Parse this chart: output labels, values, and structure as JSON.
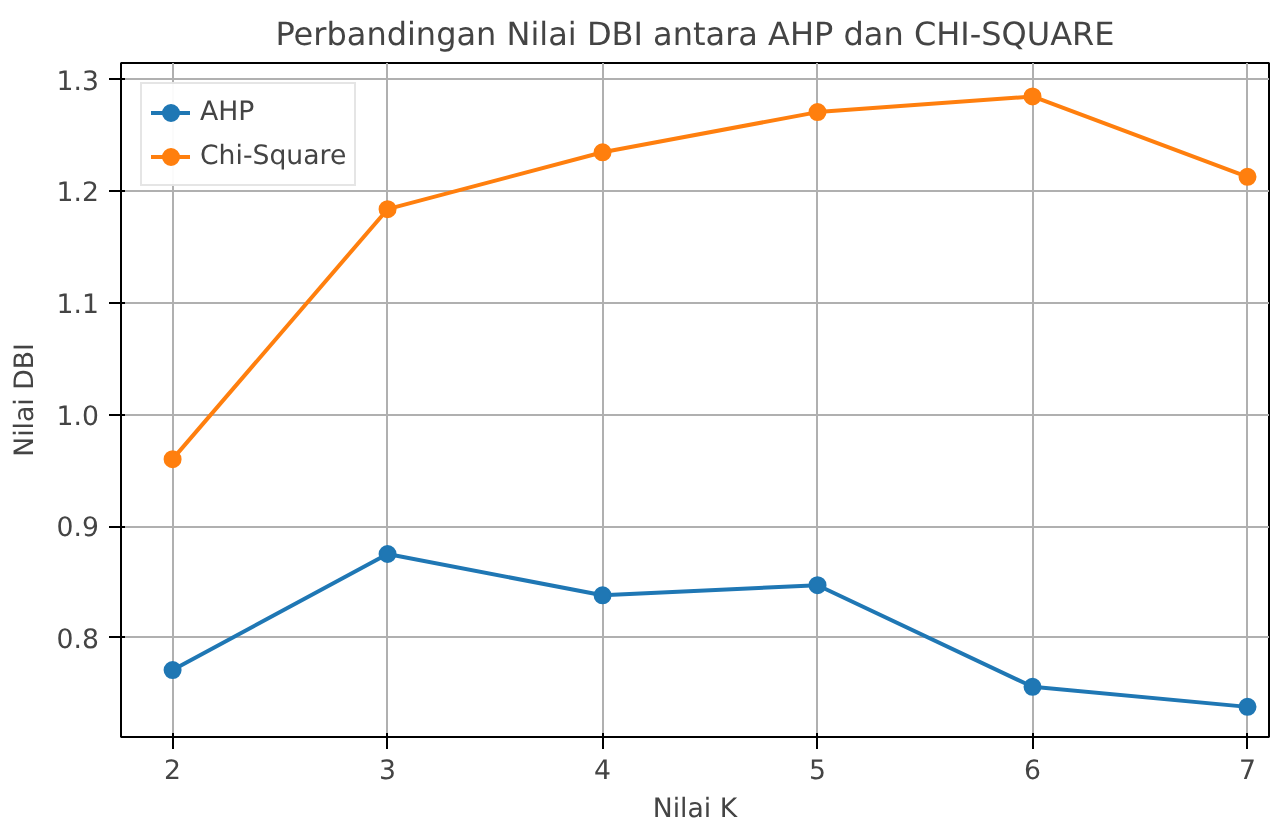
{
  "chart_data": {
    "type": "line",
    "title": "Perbandingan Nilai DBI antara AHP dan CHI-SQUARE",
    "xlabel": "Nilai K",
    "ylabel": "Nilai DBI",
    "x": [
      2,
      3,
      4,
      5,
      6,
      7
    ],
    "series": [
      {
        "name": "AHP",
        "color": "#1f77b4",
        "values": [
          0.771,
          0.875,
          0.838,
          0.847,
          0.756,
          0.738
        ]
      },
      {
        "name": "Chi-Square",
        "color": "#ff7f0e",
        "values": [
          0.96,
          1.184,
          1.235,
          1.271,
          1.285,
          1.213
        ]
      }
    ],
    "xlim": [
      1.76,
      7.1
    ],
    "ylim": [
      0.711,
      1.315
    ],
    "xticks": [
      2,
      3,
      4,
      5,
      6,
      7
    ],
    "yticks": [
      0.8,
      0.9,
      {
        "value": 1,
        "label": "1.0"
      },
      1.1,
      1.2,
      1.3
    ],
    "grid": true,
    "legend": "top left",
    "marker": "circle",
    "line_style": "solid"
  }
}
